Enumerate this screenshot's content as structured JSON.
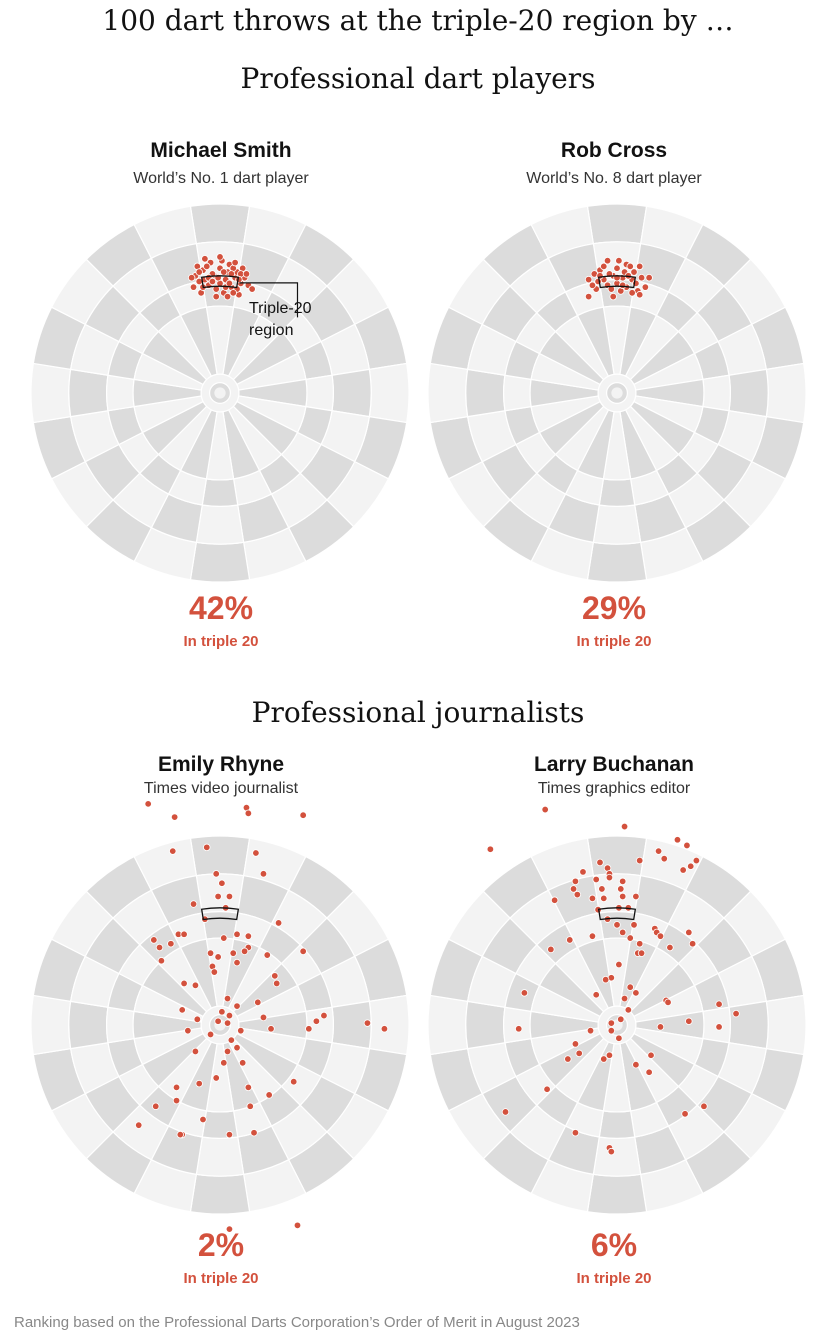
{
  "title": "100 dart throws at the triple-20 region by …",
  "sections": [
    "Professional dart players",
    "Professional journalists"
  ],
  "annotation": {
    "line1": "Triple-20",
    "line2": "region"
  },
  "footnote": "Ranking based on the Professional Darts Corporation’s Order of Merit in August 2023",
  "colors": {
    "dot": "#d3513d",
    "board_dark": "#dcdcdc",
    "board_light": "#f3f3f3",
    "accent_text": "#d3513d"
  },
  "panels": [
    {
      "name": "Michael Smith",
      "subtitle": "World’s No. 1 dart player",
      "percent": "42%",
      "percent_label": "In triple 20"
    },
    {
      "name": "Rob Cross",
      "subtitle": "World’s No. 8 dart player",
      "percent": "29%",
      "percent_label": "In triple 20"
    },
    {
      "name": "Emily Rhyne",
      "subtitle": "Times video journalist",
      "percent": "2%",
      "percent_label": "In triple 20"
    },
    {
      "name": "Larry Buchanan",
      "subtitle": "Times graphics editor",
      "percent": "6%",
      "percent_label": "In triple 20"
    }
  ],
  "chart_data": {
    "type": "scatter",
    "target": "triple 20",
    "throws_per_player": 100,
    "units": "dartboard coordinates in board radii (0,0 = bullseye, +y toward the 20)",
    "series": [
      {
        "name": "Michael Smith",
        "in_triple_20_pct": 42,
        "points": [
          [
            -0.03,
            0.62
          ],
          [
            0.03,
            0.6
          ],
          [
            0.08,
            0.61
          ],
          [
            -0.08,
            0.6
          ],
          [
            0.0,
            0.66
          ],
          [
            0.06,
            0.56
          ],
          [
            -0.06,
            0.57
          ],
          [
            0.11,
            0.58
          ],
          [
            -0.11,
            0.59
          ],
          [
            0.02,
            0.53
          ],
          [
            -0.02,
            0.55
          ],
          [
            0.05,
            0.68
          ],
          [
            -0.05,
            0.69
          ],
          [
            0.09,
            0.64
          ],
          [
            -0.09,
            0.65
          ],
          [
            0.13,
            0.61
          ],
          [
            -0.13,
            0.62
          ],
          [
            0.0,
            0.58
          ],
          [
            0.04,
            0.64
          ],
          [
            -0.04,
            0.63
          ],
          [
            0.07,
            0.66
          ],
          [
            -0.07,
            0.67
          ],
          [
            0.1,
            0.52
          ],
          [
            -0.1,
            0.53
          ],
          [
            0.01,
            0.7
          ],
          [
            0.12,
            0.66
          ],
          [
            -0.12,
            0.67
          ],
          [
            0.03,
            0.56
          ],
          [
            -0.01,
            0.61
          ],
          [
            0.15,
            0.57
          ],
          [
            -0.14,
            0.56
          ],
          [
            0.06,
            0.63
          ],
          [
            -0.06,
            0.61
          ],
          [
            0.09,
            0.55
          ],
          [
            0.0,
            0.72
          ],
          [
            0.17,
            0.55
          ],
          [
            -0.02,
            0.51
          ],
          [
            0.04,
            0.51
          ],
          [
            0.08,
            0.69
          ],
          [
            -0.08,
            0.71
          ],
          [
            0.11,
            0.63
          ],
          [
            -0.11,
            0.64
          ],
          [
            0.02,
            0.64
          ],
          [
            0.14,
            0.63
          ],
          [
            -0.15,
            0.61
          ],
          [
            0.05,
            0.58
          ],
          [
            -0.04,
            0.59
          ],
          [
            0.1,
            0.6
          ],
          [
            -0.09,
            0.56
          ],
          [
            0.07,
            0.53
          ]
        ]
      },
      {
        "name": "Rob Cross",
        "in_triple_20_pct": 29,
        "points": [
          [
            -0.02,
            0.62
          ],
          [
            0.03,
            0.61
          ],
          [
            0.08,
            0.6
          ],
          [
            -0.07,
            0.6
          ],
          [
            0.0,
            0.66
          ],
          [
            0.05,
            0.56
          ],
          [
            -0.05,
            0.57
          ],
          [
            0.1,
            0.58
          ],
          [
            -0.1,
            0.59
          ],
          [
            0.02,
            0.54
          ],
          [
            -0.03,
            0.55
          ],
          [
            0.05,
            0.68
          ],
          [
            -0.05,
            0.7
          ],
          [
            0.09,
            0.64
          ],
          [
            -0.09,
            0.65
          ],
          [
            0.13,
            0.61
          ],
          [
            -0.12,
            0.63
          ],
          [
            0.0,
            0.58
          ],
          [
            0.04,
            0.64
          ],
          [
            -0.04,
            0.63
          ],
          [
            0.07,
            0.67
          ],
          [
            -0.07,
            0.67
          ],
          [
            0.11,
            0.54
          ],
          [
            -0.11,
            0.55
          ],
          [
            0.01,
            0.7
          ],
          [
            0.12,
            0.67
          ],
          [
            -0.13,
            0.57
          ],
          [
            0.03,
            0.57
          ],
          [
            0.15,
            0.56
          ],
          [
            -0.15,
            0.6
          ],
          [
            0.06,
            0.62
          ],
          [
            0.17,
            0.61
          ],
          [
            -0.02,
            0.51
          ],
          [
            0.08,
            0.53
          ],
          [
            -0.15,
            0.51
          ],
          [
            0.12,
            0.52
          ],
          [
            0.0,
            0.61
          ],
          [
            -0.09,
            0.62
          ]
        ]
      },
      {
        "name": "Emily Rhyne",
        "in_triple_20_pct": 2,
        "points": [
          [
            -0.38,
            1.17
          ],
          [
            -0.24,
            1.1
          ],
          [
            0.14,
            1.15
          ],
          [
            0.15,
            1.12
          ],
          [
            0.44,
            1.11
          ],
          [
            -0.25,
            0.92
          ],
          [
            -0.07,
            0.94
          ],
          [
            0.19,
            0.91
          ],
          [
            0.23,
            0.8
          ],
          [
            -0.02,
            0.8
          ],
          [
            0.01,
            0.75
          ],
          [
            -0.01,
            0.68
          ],
          [
            0.05,
            0.68
          ],
          [
            0.03,
            0.62
          ],
          [
            -0.14,
            0.64
          ],
          [
            -0.08,
            0.56
          ],
          [
            -0.22,
            0.48
          ],
          [
            -0.19,
            0.48
          ],
          [
            0.15,
            0.47
          ],
          [
            0.09,
            0.48
          ],
          [
            0.15,
            0.41
          ],
          [
            0.31,
            0.54
          ],
          [
            -0.35,
            0.45
          ],
          [
            -0.32,
            0.41
          ],
          [
            -0.26,
            0.43
          ],
          [
            0.44,
            0.39
          ],
          [
            0.25,
            0.37
          ],
          [
            0.13,
            0.39
          ],
          [
            0.07,
            0.38
          ],
          [
            0.02,
            0.46
          ],
          [
            -0.01,
            0.36
          ],
          [
            -0.05,
            0.38
          ],
          [
            -0.04,
            0.31
          ],
          [
            0.09,
            0.33
          ],
          [
            0.3,
            0.22
          ],
          [
            -0.19,
            0.22
          ],
          [
            -0.13,
            0.21
          ],
          [
            -0.03,
            0.28
          ],
          [
            0.2,
            0.12
          ],
          [
            -0.12,
            0.03
          ],
          [
            0.04,
            0.14
          ],
          [
            0.09,
            0.1
          ],
          [
            0.05,
            0.05
          ],
          [
            0.01,
            0.07
          ],
          [
            -0.2,
            0.08
          ],
          [
            0.23,
            0.04
          ],
          [
            0.47,
            -0.02
          ],
          [
            0.04,
            0.01
          ],
          [
            0.27,
            -0.02
          ],
          [
            -0.01,
            0.02
          ],
          [
            -0.05,
            -0.05
          ],
          [
            -0.17,
            -0.03
          ],
          [
            0.11,
            -0.03
          ],
          [
            0.06,
            -0.08
          ],
          [
            0.09,
            -0.12
          ],
          [
            0.04,
            -0.14
          ],
          [
            -0.13,
            -0.14
          ],
          [
            0.12,
            -0.2
          ],
          [
            0.02,
            -0.2
          ],
          [
            0.26,
            -0.37
          ],
          [
            0.15,
            -0.33
          ],
          [
            -0.02,
            -0.28
          ],
          [
            -0.11,
            -0.31
          ],
          [
            -0.23,
            -0.33
          ],
          [
            0.39,
            -0.3
          ],
          [
            0.16,
            -0.43
          ],
          [
            -0.09,
            -0.5
          ],
          [
            -0.23,
            -0.4
          ],
          [
            -0.34,
            -0.43
          ],
          [
            0.18,
            -0.57
          ],
          [
            0.05,
            -0.58
          ],
          [
            -0.2,
            -0.58
          ],
          [
            -0.21,
            -0.58
          ],
          [
            -0.43,
            -0.53
          ],
          [
            0.05,
            -1.08
          ],
          [
            0.41,
            -1.06
          ],
          [
            0.78,
            0.01
          ],
          [
            0.55,
            0.05
          ],
          [
            0.87,
            -0.02
          ],
          [
            0.51,
            0.02
          ],
          [
            -0.31,
            0.34
          ],
          [
            0.29,
            0.26
          ]
        ]
      },
      {
        "name": "Larry Buchanan",
        "in_triple_20_pct": 6,
        "points": [
          [
            -0.38,
            1.14
          ],
          [
            0.04,
            1.05
          ],
          [
            -0.67,
            0.93
          ],
          [
            0.32,
            0.98
          ],
          [
            0.37,
            0.95
          ],
          [
            0.22,
            0.92
          ],
          [
            0.39,
            0.84
          ],
          [
            0.12,
            0.87
          ],
          [
            0.25,
            0.88
          ],
          [
            0.35,
            0.82
          ],
          [
            0.42,
            0.87
          ],
          [
            -0.09,
            0.86
          ],
          [
            -0.05,
            0.83
          ],
          [
            -0.04,
            0.8
          ],
          [
            -0.18,
            0.81
          ],
          [
            -0.04,
            0.78
          ],
          [
            -0.11,
            0.77
          ],
          [
            0.03,
            0.76
          ],
          [
            0.02,
            0.72
          ],
          [
            0.03,
            0.68
          ],
          [
            0.1,
            0.68
          ],
          [
            -0.08,
            0.72
          ],
          [
            -0.22,
            0.76
          ],
          [
            -0.23,
            0.72
          ],
          [
            -0.21,
            0.69
          ],
          [
            -0.33,
            0.66
          ],
          [
            -0.13,
            0.67
          ],
          [
            -0.07,
            0.67
          ],
          [
            -0.1,
            0.61
          ],
          [
            0.01,
            0.62
          ],
          [
            0.06,
            0.62
          ],
          [
            -0.05,
            0.56
          ],
          [
            0.0,
            0.53
          ],
          [
            0.03,
            0.49
          ],
          [
            0.09,
            0.53
          ],
          [
            0.07,
            0.46
          ],
          [
            0.12,
            0.43
          ],
          [
            0.11,
            0.38
          ],
          [
            -0.13,
            0.47
          ],
          [
            -0.25,
            0.45
          ],
          [
            0.2,
            0.51
          ],
          [
            0.21,
            0.49
          ],
          [
            0.23,
            0.47
          ],
          [
            0.38,
            0.49
          ],
          [
            0.28,
            0.41
          ],
          [
            0.4,
            0.43
          ],
          [
            0.13,
            0.38
          ],
          [
            0.01,
            0.32
          ],
          [
            -0.03,
            0.25
          ],
          [
            -0.06,
            0.24
          ],
          [
            0.07,
            0.2
          ],
          [
            -0.11,
            0.16
          ],
          [
            0.1,
            0.17
          ],
          [
            0.04,
            0.14
          ],
          [
            0.06,
            0.08
          ],
          [
            0.26,
            0.13
          ],
          [
            0.27,
            0.12
          ],
          [
            0.54,
            0.11
          ],
          [
            0.38,
            0.02
          ],
          [
            0.54,
            -0.01
          ],
          [
            0.23,
            -0.01
          ],
          [
            0.02,
            0.03
          ],
          [
            -0.03,
            0.01
          ],
          [
            -0.03,
            -0.03
          ],
          [
            -0.14,
            -0.03
          ],
          [
            -0.22,
            -0.1
          ],
          [
            -0.2,
            -0.15
          ],
          [
            0.01,
            -0.07
          ],
          [
            -0.04,
            -0.16
          ],
          [
            -0.07,
            -0.18
          ],
          [
            0.1,
            -0.21
          ],
          [
            0.18,
            -0.16
          ],
          [
            0.17,
            -0.25
          ],
          [
            -0.26,
            -0.18
          ],
          [
            -0.52,
            -0.02
          ],
          [
            -0.37,
            -0.34
          ],
          [
            -0.59,
            -0.46
          ],
          [
            -0.22,
            -0.57
          ],
          [
            -0.04,
            -0.65
          ],
          [
            -0.03,
            -0.67
          ],
          [
            0.36,
            -0.47
          ],
          [
            0.46,
            -0.43
          ],
          [
            0.63,
            0.06
          ],
          [
            -0.35,
            0.4
          ],
          [
            -0.49,
            0.17
          ]
        ]
      }
    ]
  }
}
